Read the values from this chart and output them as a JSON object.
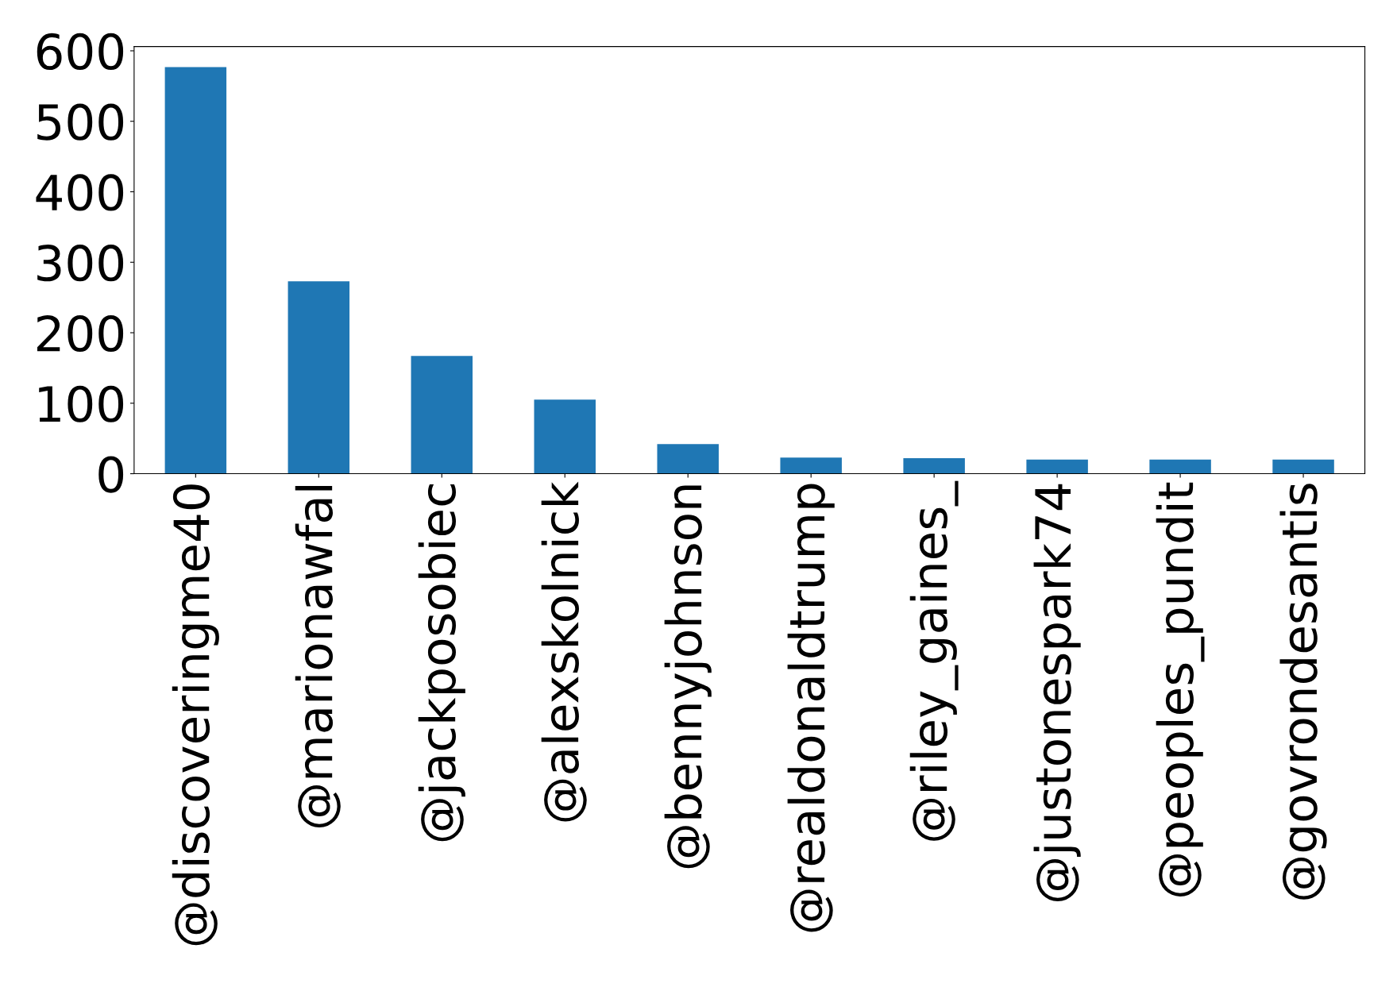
{
  "chart_data": {
    "type": "bar",
    "categories": [
      "@discoveringme40",
      "@marionawfal",
      "@jackposobiec",
      "@alexskolnick",
      "@bennyjohnson",
      "@realdonaldtrump",
      "@riley_gaines_",
      "@justonespark74",
      "@peoples_pundit",
      "@govrondesantis"
    ],
    "values": [
      577,
      273,
      167,
      105,
      42,
      23,
      22,
      20,
      20,
      20
    ],
    "color": "#1f77b4",
    "ylim": [
      0,
      606
    ],
    "yticks": [
      0,
      100,
      200,
      300,
      400,
      500,
      600
    ],
    "grid": false,
    "legend": false
  }
}
